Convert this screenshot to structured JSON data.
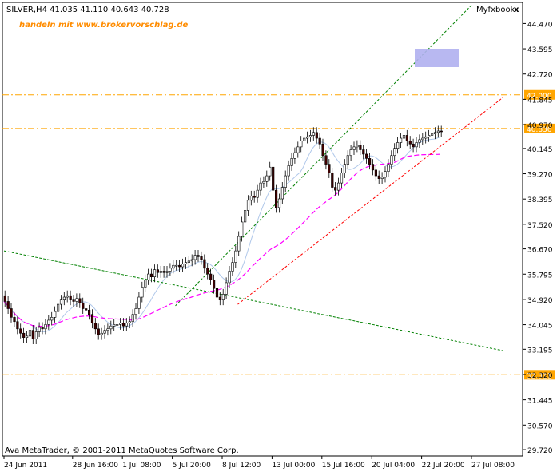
{
  "window": {
    "title": "SILVER,H4  41.035 41.110 40.643 40.728",
    "indicator_label": "Myfxbook",
    "close_symbol": "x"
  },
  "watermark": "handeln mit www.brokervorschlag.de",
  "copyright": "Ava MetaTrader, © 2001-2011 MetaQuotes Software Corp.",
  "colors": {
    "background": "#ffffff",
    "frame": "#000000",
    "candle_up": "#ffffff",
    "candle_down": "#400000",
    "level_line": "#ffa500",
    "level_tag_bg": "#ffa500",
    "level_tag_text": "#ffffff",
    "trend_green": "#008000",
    "trend_red": "#ff0000",
    "ma_magenta": "#ff00ff",
    "ma_blue": "#b0c8ea",
    "ma_light": "#e0e0e0",
    "box_fill": "#b0b0f0",
    "watermark": "#ff8c00"
  },
  "chart_data": {
    "type": "candlestick",
    "symbol": "SILVER",
    "timeframe": "H4",
    "ylim": [
      29.5,
      45.2
    ],
    "y_ticks": [
      "44.470",
      "43.595",
      "42.720",
      "41.845",
      "40.970",
      "40.145",
      "39.270",
      "38.395",
      "37.520",
      "36.670",
      "35.795",
      "34.920",
      "34.045",
      "33.195",
      "32.320",
      "31.445",
      "30.570",
      "29.720"
    ],
    "x_ticks": [
      {
        "label": "24 Jun 2011",
        "bar": 0
      },
      {
        "label": "28 Jun 16:00",
        "bar": 22
      },
      {
        "label": "1 Jul 08:00",
        "bar": 38
      },
      {
        "label": "5 Jul 20:00",
        "bar": 54
      },
      {
        "label": "8 Jul 12:00",
        "bar": 70
      },
      {
        "label": "13 Jul 00:00",
        "bar": 86
      },
      {
        "label": "15 Jul 16:00",
        "bar": 102
      },
      {
        "label": "20 Jul 04:00",
        "bar": 118
      },
      {
        "label": "22 Jul 20:00",
        "bar": 134
      },
      {
        "label": "27 Jul 08:00",
        "bar": 150
      }
    ],
    "closes": [
      34.85,
      34.6,
      34.3,
      34.15,
      33.9,
      33.75,
      33.6,
      33.65,
      33.85,
      33.55,
      33.8,
      33.95,
      33.9,
      34.05,
      34.2,
      34.3,
      34.5,
      34.75,
      34.9,
      35.0,
      35.05,
      34.9,
      34.85,
      34.95,
      34.8,
      34.6,
      34.55,
      34.4,
      34.1,
      33.9,
      33.7,
      33.75,
      33.85,
      33.9,
      34.0,
      34.05,
      34.05,
      34.1,
      34.0,
      34.1,
      34.15,
      34.4,
      34.6,
      35.0,
      35.35,
      35.6,
      35.8,
      35.7,
      35.95,
      35.85,
      35.9,
      35.85,
      35.9,
      36.0,
      36.1,
      36.1,
      36.05,
      36.15,
      36.2,
      36.25,
      36.3,
      36.45,
      36.4,
      36.3,
      36.0,
      35.8,
      35.6,
      35.3,
      35.0,
      34.9,
      35.1,
      35.5,
      35.9,
      36.2,
      36.6,
      37.1,
      37.6,
      38.0,
      38.35,
      38.5,
      38.45,
      38.7,
      38.95,
      39.0,
      39.2,
      39.5,
      38.7,
      38.1,
      38.4,
      38.8,
      39.2,
      39.55,
      39.8,
      40.0,
      40.2,
      40.4,
      40.5,
      40.55,
      40.6,
      40.7,
      40.5,
      40.3,
      39.9,
      39.6,
      39.3,
      38.8,
      38.7,
      38.95,
      39.3,
      39.6,
      39.9,
      40.1,
      40.2,
      40.25,
      40.1,
      39.95,
      39.8,
      39.6,
      39.4,
      39.2,
      39.1,
      39.15,
      39.35,
      39.6,
      39.9,
      40.15,
      40.35,
      40.5,
      40.6,
      40.4,
      40.3,
      40.2,
      40.35,
      40.45,
      40.5,
      40.55,
      40.6,
      40.65,
      40.7,
      40.75,
      40.728
    ],
    "levels": [
      {
        "value": 42.0,
        "label": "42.000"
      },
      {
        "value": 40.836,
        "label": "40.836"
      },
      {
        "value": 32.311,
        "label": "32.311"
      }
    ],
    "trendlines": [
      {
        "color": "green",
        "from": [
          34.7,
          55
        ],
        "to": [
          45.1,
          150
        ]
      },
      {
        "color": "red",
        "from": [
          34.75,
          75
        ],
        "to": [
          41.9,
          160
        ]
      },
      {
        "color": "green",
        "from": [
          36.6,
          0
        ],
        "to": [
          33.15,
          160
        ]
      }
    ],
    "grid": false,
    "legend": "none"
  }
}
